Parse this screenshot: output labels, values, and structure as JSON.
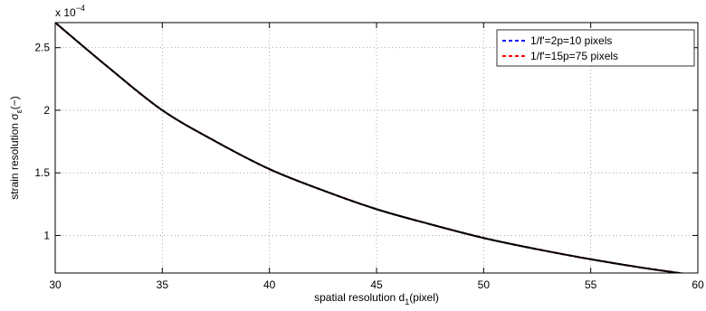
{
  "chart_data": {
    "type": "line",
    "xlabel": "spatial resolution d",
    "xlabel_sub": "1",
    "xlabel_suffix": "(pixel)",
    "ylabel": "strain resolution σ",
    "ylabel_sub": "ε",
    "ylabel_suffix": "(−)",
    "y_exponent_label": "x 10",
    "y_exponent_power": "−4",
    "xlim": [
      30,
      60
    ],
    "ylim": [
      0.7,
      2.7
    ],
    "y_scale_factor": 0.0001,
    "xticks": [
      30,
      35,
      40,
      45,
      50,
      55,
      60
    ],
    "yticks": [
      1,
      1.5,
      2,
      2.5
    ],
    "ytick_labels": [
      "1",
      "1.5",
      "2",
      "2.5"
    ],
    "grid": true,
    "legend_position": "top-right",
    "series": [
      {
        "name": "1/f'=2p=10 pixels",
        "color": "#0000ff",
        "x": [
          30,
          32.5,
          35,
          37.5,
          40,
          42.5,
          45,
          47.5,
          50,
          52.5,
          55,
          57.5,
          60
        ],
        "y": [
          2.7,
          2.34,
          2.0,
          1.75,
          1.53,
          1.36,
          1.21,
          1.09,
          0.98,
          0.89,
          0.81,
          0.74,
          0.68
        ]
      },
      {
        "name": "1/f'=15p=75 pixels",
        "color": "#ff0000",
        "x": [
          30,
          32.5,
          35,
          37.5,
          40,
          42.5,
          45,
          47.5,
          50,
          52.5,
          55,
          57.5,
          60
        ],
        "y": [
          2.7,
          2.34,
          2.0,
          1.75,
          1.53,
          1.36,
          1.21,
          1.09,
          0.98,
          0.89,
          0.81,
          0.74,
          0.68
        ]
      }
    ]
  }
}
